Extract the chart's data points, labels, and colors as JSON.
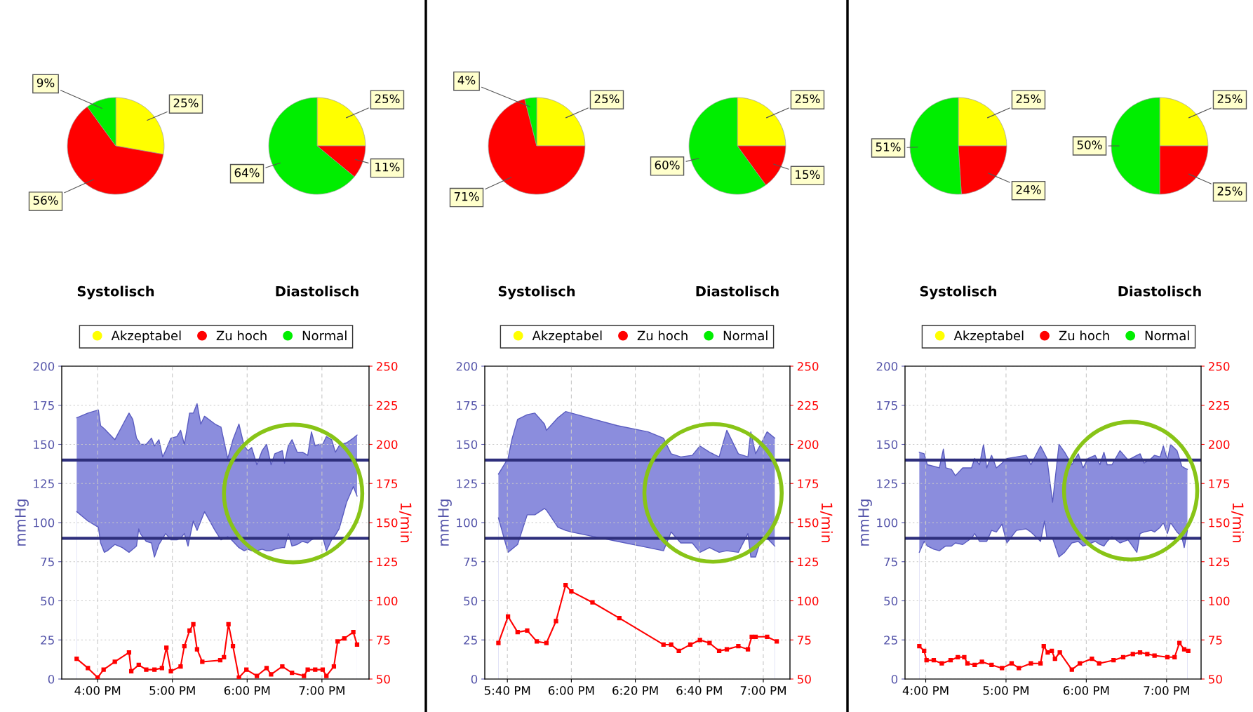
{
  "chart_data": [
    {
      "type": "pie",
      "title": "Systolisch",
      "categories": [
        "Akzeptabel",
        "Zu hoch",
        "Normal"
      ],
      "values": [
        25,
        56,
        9
      ],
      "value_labels": [
        "25%",
        "56%",
        "9%"
      ],
      "colors": [
        "#ffff00",
        "#ff0000",
        "#00ee00"
      ],
      "legend": "bottom"
    },
    {
      "type": "pie",
      "title": "Diastolisch",
      "categories": [
        null,
        null,
        null
      ],
      "values": [
        25,
        11,
        64
      ],
      "value_labels": [
        "25%",
        "11%",
        "64%"
      ],
      "colors": [
        "#ffff00",
        "#ff0000",
        "#00ee00"
      ]
    },
    {
      "type": "pie",
      "title": "Systolisch",
      "categories": [
        "Akzeptabel",
        "Zu hoch",
        "Normal"
      ],
      "values": [
        25,
        71,
        4
      ],
      "value_labels": [
        "25%",
        "71%",
        "4%"
      ],
      "colors": [
        "#ffff00",
        "#ff0000",
        "#00ee00"
      ],
      "legend": "bottom"
    },
    {
      "type": "pie",
      "title": "Diastolisch",
      "categories": [
        null,
        null,
        null
      ],
      "values": [
        25,
        15,
        60
      ],
      "value_labels": [
        "25%",
        "15%",
        "60%"
      ],
      "colors": [
        "#ffff00",
        "#ff0000",
        "#00ee00"
      ]
    },
    {
      "type": "pie",
      "title": "Systolisch",
      "categories": [
        "Akzeptabel",
        "Zu hoch",
        "Normal"
      ],
      "values": [
        25,
        24,
        51
      ],
      "value_labels": [
        "25%",
        "24%",
        "51%"
      ],
      "colors": [
        "#ffff00",
        "#ff0000",
        "#00ee00"
      ],
      "legend": "bottom"
    },
    {
      "type": "pie",
      "title": "Diastolisch",
      "categories": [
        null,
        null,
        null
      ],
      "values": [
        25,
        25,
        50
      ],
      "value_labels": [
        "25%",
        "25%",
        "50%"
      ],
      "colors": [
        "#ffff00",
        "#ff0000",
        "#00ee00"
      ]
    },
    {
      "type": "area",
      "ylabel": "mmHg",
      "y2label": "1/min",
      "xlim": [
        15.52,
        19.63
      ],
      "xticks": [
        {
          "value": 16,
          "label": "4:00 PM"
        },
        {
          "value": 17,
          "label": "5:00 PM"
        },
        {
          "value": 18,
          "label": "6:00 PM"
        },
        {
          "value": 19,
          "label": "7:00 PM"
        }
      ],
      "ylim": [
        0,
        200
      ],
      "yticks": [
        0,
        25,
        50,
        75,
        100,
        125,
        150,
        175,
        200
      ],
      "y2lim": [
        50,
        250
      ],
      "y2ticks": [
        50,
        75,
        100,
        125,
        150,
        175,
        200,
        225,
        250
      ],
      "grid": true,
      "ref_lines": [
        {
          "axis": "y",
          "value": 140,
          "color": "#2e2f7c"
        },
        {
          "axis": "y",
          "value": 90,
          "color": "#2e2f7c"
        }
      ],
      "series": [
        {
          "type": "area",
          "color": "#8b8ddd",
          "x": [
            15.72,
            15.87,
            16.01,
            16.04,
            16.09,
            16.13,
            16.23,
            16.33,
            16.42,
            16.47,
            16.52,
            16.55,
            16.57,
            16.65,
            16.72,
            16.76,
            16.82,
            16.87,
            16.91,
            16.98,
            17.06,
            17.11,
            17.16,
            17.21,
            17.23,
            17.28,
            17.33,
            17.38,
            17.43,
            17.57,
            17.65,
            17.74,
            17.77,
            17.81,
            17.89,
            17.96,
            18.01,
            18.06,
            18.13,
            18.2,
            18.26,
            18.32,
            18.37,
            18.47,
            18.5,
            18.55,
            18.6,
            18.67,
            18.74,
            18.81,
            18.86,
            18.91,
            18.96,
            19.01,
            19.06,
            19.13,
            19.18,
            19.23,
            19.26,
            19.33,
            19.42,
            19.47
          ],
          "values": [
            167,
            170,
            172,
            162,
            160,
            158,
            153,
            162,
            170,
            166,
            154,
            152,
            150,
            150,
            154,
            149,
            153,
            142,
            146,
            154,
            155,
            159,
            150,
            164,
            170,
            170,
            176,
            163,
            168,
            163,
            161,
            141,
            146,
            153,
            163,
            149,
            146,
            148,
            137,
            146,
            150,
            137,
            144,
            146,
            138,
            149,
            153,
            145,
            145,
            143,
            158,
            149,
            150,
            150,
            155,
            153,
            145,
            149,
            150,
            151,
            154,
            156
          ]
        },
        {
          "type": "area",
          "color": "#ffffff",
          "x": [
            15.72,
            15.87,
            16.01,
            16.04,
            16.09,
            16.13,
            16.23,
            16.33,
            16.42,
            16.47,
            16.52,
            16.55,
            16.57,
            16.65,
            16.72,
            16.76,
            16.82,
            16.87,
            16.91,
            16.98,
            17.06,
            17.11,
            17.16,
            17.21,
            17.23,
            17.28,
            17.33,
            17.38,
            17.43,
            17.57,
            17.65,
            17.74,
            17.77,
            17.81,
            17.89,
            17.96,
            18.01,
            18.06,
            18.13,
            18.2,
            18.26,
            18.32,
            18.37,
            18.47,
            18.5,
            18.55,
            18.6,
            18.67,
            18.74,
            18.81,
            18.86,
            18.91,
            18.96,
            19.01,
            19.06,
            19.13,
            19.18,
            19.23,
            19.26,
            19.33,
            19.42,
            19.47
          ],
          "values": [
            107,
            101,
            97,
            87,
            81,
            82,
            86,
            84,
            81,
            83,
            85,
            96,
            93,
            88,
            87,
            78,
            86,
            90,
            93,
            89,
            89,
            90,
            93,
            85,
            90,
            101,
            95,
            101,
            107,
            95,
            89,
            91,
            90,
            88,
            84,
            82,
            83,
            82,
            82,
            83,
            82,
            82,
            83,
            84,
            84,
            93,
            85,
            86,
            88,
            87,
            89,
            90,
            90,
            91,
            82,
            89,
            92,
            96,
            101,
            113,
            123,
            117
          ]
        },
        {
          "type": "line",
          "axis": "y2",
          "color": "#ff0000",
          "marker": "square",
          "x": [
            15.72,
            15.87,
            16.0,
            16.08,
            16.23,
            16.42,
            16.45,
            16.55,
            16.65,
            16.76,
            16.86,
            16.92,
            16.98,
            17.11,
            17.16,
            17.23,
            17.28,
            17.33,
            17.4,
            17.64,
            17.69,
            17.75,
            17.81,
            17.89,
            17.99,
            18.13,
            18.26,
            18.32,
            18.47,
            18.6,
            18.76,
            18.81,
            18.91,
            19.01,
            19.06,
            19.16,
            19.21,
            19.3,
            19.42,
            19.47
          ],
          "values": [
            63,
            57,
            51,
            56,
            61,
            67,
            55,
            59,
            56,
            56,
            57,
            70,
            55,
            58,
            71,
            81,
            85,
            69,
            61,
            62,
            64,
            85,
            71,
            51,
            56,
            52,
            57,
            53,
            58,
            54,
            52,
            56,
            56,
            56,
            52,
            58,
            74,
            76,
            80,
            72
          ]
        }
      ]
    },
    {
      "type": "area",
      "ylabel": "mmHg",
      "y2label": "1/min",
      "xlim": [
        17.549,
        19.139
      ],
      "xticks": [
        {
          "value": 17.6667,
          "label": "5:40 PM"
        },
        {
          "value": 18,
          "label": "6:00 PM"
        },
        {
          "value": 18.3333,
          "label": "6:20 PM"
        },
        {
          "value": 18.6667,
          "label": "6:40 PM"
        },
        {
          "value": 19,
          "label": "7:00 PM"
        }
      ],
      "ylim": [
        0,
        200
      ],
      "yticks": [
        0,
        25,
        50,
        75,
        100,
        125,
        150,
        175,
        200
      ],
      "y2lim": [
        50,
        250
      ],
      "y2ticks": [
        50,
        75,
        100,
        125,
        150,
        175,
        200,
        225,
        250
      ],
      "grid": true,
      "ref_lines": [
        {
          "axis": "y",
          "value": 140,
          "color": "#2e2f7c"
        },
        {
          "axis": "y",
          "value": 90,
          "color": "#2e2f7c"
        }
      ],
      "series": [
        {
          "type": "area",
          "color": "#8b8ddd",
          "x": [
            17.62,
            17.67,
            17.69,
            17.72,
            17.77,
            17.81,
            17.86,
            17.87,
            17.93,
            17.97,
            18.0,
            18.12,
            18.24,
            18.4,
            18.48,
            18.52,
            18.57,
            18.63,
            18.67,
            18.72,
            18.77,
            18.81,
            18.87,
            18.92,
            18.935,
            18.96,
            18.99,
            19.02,
            19.06
          ],
          "values": [
            131,
            141,
            153,
            166,
            169,
            170,
            163,
            159,
            167,
            171,
            170,
            166,
            162,
            158,
            154,
            144,
            142,
            143,
            149,
            145,
            142,
            159,
            144,
            142,
            158,
            144,
            151,
            158,
            154
          ]
        },
        {
          "type": "area",
          "color": "#ffffff",
          "x": [
            17.62,
            17.67,
            17.69,
            17.72,
            17.77,
            17.81,
            17.86,
            17.87,
            17.93,
            17.97,
            18.0,
            18.12,
            18.24,
            18.4,
            18.48,
            18.52,
            18.57,
            18.63,
            18.67,
            18.72,
            18.77,
            18.81,
            18.87,
            18.92,
            18.935,
            18.96,
            18.99,
            19.02,
            19.06
          ],
          "values": [
            103,
            81,
            83,
            86,
            105,
            105,
            109,
            108,
            97,
            95,
            94,
            91,
            88,
            84,
            82,
            94,
            87,
            87,
            81,
            84,
            81,
            82,
            81,
            93,
            78,
            78,
            90,
            90,
            85
          ]
        },
        {
          "type": "line",
          "axis": "y2",
          "color": "#ff0000",
          "marker": "square",
          "x": [
            17.62,
            17.67,
            17.72,
            17.77,
            17.82,
            17.87,
            17.92,
            17.97,
            18.0,
            18.11,
            18.25,
            18.48,
            18.52,
            18.56,
            18.62,
            18.67,
            18.72,
            18.77,
            18.81,
            18.87,
            18.92,
            18.94,
            18.96,
            19.02,
            19.07
          ],
          "values": [
            73,
            90,
            80,
            81,
            74,
            73,
            87,
            110,
            106,
            99,
            89,
            72,
            72,
            68,
            72,
            75,
            73,
            68,
            69,
            71,
            69,
            77,
            77,
            77,
            74
          ]
        }
      ]
    },
    {
      "type": "area",
      "ylabel": "mmHg",
      "y2label": "1/min",
      "xlim": [
        15.742,
        19.43
      ],
      "xticks": [
        {
          "value": 16,
          "label": "4:00 PM"
        },
        {
          "value": 17,
          "label": "5:00 PM"
        },
        {
          "value": 18,
          "label": "6:00 PM"
        },
        {
          "value": 19,
          "label": "7:00 PM"
        }
      ],
      "ylim": [
        0,
        200
      ],
      "yticks": [
        0,
        25,
        50,
        75,
        100,
        125,
        150,
        175,
        200
      ],
      "y2lim": [
        50,
        250
      ],
      "y2ticks": [
        50,
        75,
        100,
        125,
        150,
        175,
        200,
        225,
        250
      ],
      "grid": true,
      "ref_lines": [
        {
          "axis": "y",
          "value": 140,
          "color": "#2e2f7c"
        },
        {
          "axis": "y",
          "value": 90,
          "color": "#2e2f7c"
        }
      ],
      "series": [
        {
          "type": "area",
          "color": "#8b8ddd",
          "x": [
            15.92,
            15.98,
            16.02,
            16.1,
            16.17,
            16.22,
            16.25,
            16.32,
            16.37,
            16.46,
            16.57,
            16.61,
            16.67,
            16.72,
            16.76,
            16.82,
            16.88,
            16.95,
            17.01,
            17.13,
            17.25,
            17.31,
            17.43,
            17.48,
            17.51,
            17.58,
            17.66,
            17.73,
            17.82,
            17.9,
            17.96,
            18.02,
            18.11,
            18.17,
            18.22,
            18.26,
            18.32,
            18.42,
            18.52,
            18.63,
            18.67,
            18.72,
            18.81,
            18.85,
            18.92,
            18.96,
            19.01,
            19.05,
            19.13,
            19.19,
            19.22,
            19.26
          ],
          "values": [
            145,
            144,
            137,
            136,
            135,
            147,
            135,
            134,
            130,
            135,
            135,
            141,
            137,
            150,
            135,
            143,
            135,
            138,
            141,
            142,
            143,
            137,
            149,
            144,
            141,
            113,
            150,
            145,
            137,
            144,
            135,
            141,
            143,
            137,
            145,
            137,
            137,
            146,
            140,
            143,
            144,
            138,
            141,
            143,
            142,
            149,
            140,
            150,
            146,
            136,
            135,
            134
          ]
        },
        {
          "type": "area",
          "color": "#ffffff",
          "x": [
            15.92,
            15.98,
            16.02,
            16.1,
            16.17,
            16.22,
            16.25,
            16.32,
            16.37,
            16.46,
            16.57,
            16.61,
            16.67,
            16.72,
            16.76,
            16.82,
            16.88,
            16.95,
            17.01,
            17.13,
            17.25,
            17.31,
            17.43,
            17.48,
            17.51,
            17.58,
            17.66,
            17.73,
            17.82,
            17.9,
            17.96,
            18.02,
            18.11,
            18.17,
            18.22,
            18.26,
            18.32,
            18.42,
            18.52,
            18.63,
            18.67,
            18.72,
            18.81,
            18.85,
            18.92,
            18.96,
            19.01,
            19.05,
            19.13,
            19.19,
            19.22,
            19.26
          ],
          "values": [
            81,
            88,
            85,
            83,
            82,
            84,
            85,
            85,
            87,
            86,
            90,
            93,
            88,
            88,
            88,
            95,
            94,
            99,
            87,
            95,
            96,
            94,
            88,
            101,
            90,
            90,
            78,
            81,
            87,
            88,
            85,
            86,
            88,
            86,
            85,
            88,
            91,
            87,
            89,
            81,
            93,
            94,
            95,
            94,
            97,
            100,
            93,
            100,
            94,
            91,
            84,
            95
          ]
        },
        {
          "type": "line",
          "axis": "y2",
          "color": "#ff0000",
          "marker": "square",
          "x": [
            15.92,
            15.98,
            16.01,
            16.1,
            16.2,
            16.31,
            16.4,
            16.48,
            16.52,
            16.61,
            16.7,
            16.82,
            16.95,
            17.07,
            17.16,
            17.31,
            17.43,
            17.47,
            17.52,
            17.57,
            17.61,
            17.67,
            17.82,
            17.92,
            18.07,
            18.16,
            18.34,
            18.46,
            18.58,
            18.67,
            18.76,
            18.85,
            19.01,
            19.1,
            19.16,
            19.22,
            19.27
          ],
          "values": [
            71,
            68,
            62,
            62,
            60,
            62,
            64,
            64,
            60,
            59,
            61,
            59,
            57,
            60,
            57,
            60,
            60,
            71,
            67,
            68,
            63,
            67,
            56,
            60,
            63,
            60,
            62,
            64,
            66,
            67,
            66,
            65,
            64,
            64,
            73,
            69,
            68
          ]
        }
      ]
    }
  ]
}
